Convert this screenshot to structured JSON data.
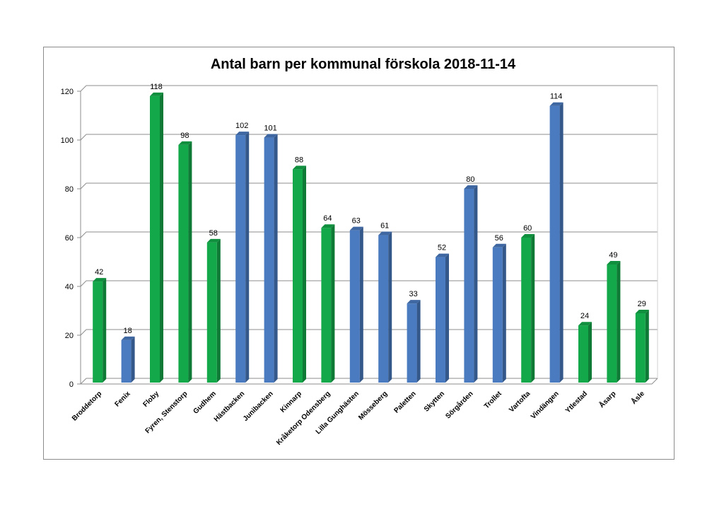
{
  "chart_data": {
    "type": "bar",
    "title": "Antal barn per kommunal förskola 2018-11-14",
    "xlabel": "",
    "ylabel": "",
    "ylim": [
      0,
      120
    ],
    "yticks": [
      0,
      20,
      40,
      60,
      80,
      100,
      120
    ],
    "grid": true,
    "legend": "none",
    "colors": {
      "green": "#13a94a",
      "blue": "#4a7abf"
    },
    "categories": [
      "Broddetorp",
      "Fenix",
      "Floby",
      "Fyren, Stenstorp",
      "Gudhem",
      "Hästbacken",
      "Junibacken",
      "Kinnarp",
      "Kråketorp Odensberg",
      "Lilla Gunghästen",
      "Mösseberg",
      "Paletten",
      "Skytten",
      "Sörgården",
      "Trollet",
      "Vartofta",
      "Vindängen",
      "Ytlestad",
      "Åsarp",
      "Åsle"
    ],
    "values": [
      42,
      18,
      118,
      98,
      58,
      102,
      101,
      88,
      64,
      63,
      61,
      33,
      52,
      80,
      56,
      60,
      114,
      24,
      49,
      29
    ],
    "bar_colors": [
      "green",
      "blue",
      "green",
      "green",
      "green",
      "blue",
      "blue",
      "green",
      "green",
      "blue",
      "blue",
      "blue",
      "blue",
      "blue",
      "blue",
      "green",
      "blue",
      "green",
      "green",
      "green"
    ]
  }
}
